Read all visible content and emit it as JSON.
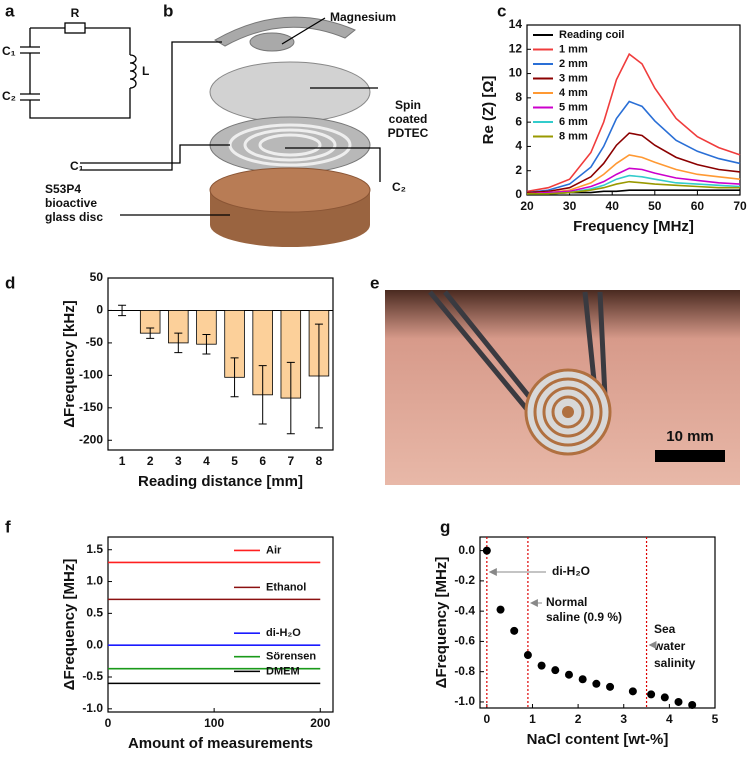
{
  "panel_labels": [
    "a",
    "b",
    "c",
    "d",
    "e",
    "f",
    "g"
  ],
  "circuit": {
    "resistor": "R",
    "capacitor_1": "C₁",
    "capacitor_2": "C₂",
    "inductor": "L"
  },
  "device": {
    "top_layer": "Magnesium",
    "middle_layer": [
      "Spin",
      "coated",
      "PDTEC"
    ],
    "contact_1": "C₁",
    "contact_2": "C₂",
    "substrate": [
      "S53P4",
      "bioactive",
      "glass disc"
    ]
  },
  "photo": {
    "scale_bar": "10 mm"
  },
  "chart_data": [
    {
      "type": "line",
      "ylabel": "Re (Z) [Ω]",
      "xlabel": "Frequency [MHz]",
      "x": [
        20,
        25,
        30,
        35,
        38,
        41,
        44,
        47,
        50,
        55,
        60,
        65,
        70
      ],
      "xlim": [
        20,
        70
      ],
      "xticks": [
        20,
        30,
        40,
        50,
        60,
        70
      ],
      "ylim": [
        0,
        14
      ],
      "yticks": [
        0,
        2,
        4,
        6,
        8,
        10,
        12,
        14
      ],
      "legend": "upper left",
      "series": [
        {
          "name": "Reading coil",
          "color": "#000000",
          "values": [
            0.1,
            0.1,
            0.2,
            0.2,
            0.3,
            0.3,
            0.4,
            0.4,
            0.4,
            0.4,
            0.4,
            0.4,
            0.4
          ]
        },
        {
          "name": "1 mm",
          "color": "#f03c3c",
          "values": [
            0.3,
            0.6,
            1.3,
            3.5,
            6,
            9.5,
            11.6,
            10.8,
            8.8,
            6.3,
            4.8,
            3.9,
            3.3
          ]
        },
        {
          "name": "2 mm",
          "color": "#2a6fd6",
          "values": [
            0.2,
            0.4,
            0.9,
            2.3,
            4,
            6.3,
            7.7,
            7.3,
            6.1,
            4.5,
            3.6,
            3,
            2.6
          ]
        },
        {
          "name": "3 mm",
          "color": "#8b0000",
          "values": [
            0.2,
            0.3,
            0.6,
            1.5,
            2.6,
            4.1,
            5.1,
            4.9,
            4.1,
            3.1,
            2.5,
            2.1,
            1.9
          ]
        },
        {
          "name": "4 mm",
          "color": "#ff9933",
          "values": [
            0.1,
            0.2,
            0.4,
            1,
            1.7,
            2.6,
            3.3,
            3.1,
            2.7,
            2.1,
            1.7,
            1.5,
            1.3
          ]
        },
        {
          "name": "5 mm",
          "color": "#cc00cc",
          "values": [
            0.1,
            0.2,
            0.3,
            0.7,
            1.1,
            1.7,
            2.2,
            2.1,
            1.8,
            1.4,
            1.2,
            1,
            0.9
          ]
        },
        {
          "name": "6 mm",
          "color": "#33cccc",
          "values": [
            0.1,
            0.1,
            0.2,
            0.5,
            0.8,
            1.3,
            1.6,
            1.5,
            1.3,
            1,
            0.9,
            0.8,
            0.7
          ]
        },
        {
          "name": "8 mm",
          "color": "#999900",
          "values": [
            0.1,
            0.1,
            0.2,
            0.4,
            0.6,
            0.9,
            1.1,
            1,
            0.9,
            0.8,
            0.7,
            0.6,
            0.6
          ]
        }
      ]
    },
    {
      "type": "bar",
      "ylabel": "ΔFrequency [kHz]",
      "xlabel": "Reading distance [mm]",
      "categories": [
        "1",
        "2",
        "3",
        "4",
        "5",
        "6",
        "7",
        "8"
      ],
      "values": [
        0,
        -35,
        -50,
        -52,
        -103,
        -130,
        -135,
        -101
      ],
      "errors": [
        8,
        8,
        15,
        15,
        30,
        45,
        55,
        80
      ],
      "color": "#fcd09a",
      "ylim": [
        -215,
        50
      ],
      "yticks": [
        50,
        0,
        -50,
        -100,
        -150,
        -200
      ]
    },
    {
      "type": "line",
      "ylabel": "ΔFrequency [MHz]",
      "xlabel": "Amount of measurements",
      "x": [
        0,
        200
      ],
      "xlim": [
        0,
        212
      ],
      "xticks": [
        0,
        100,
        200
      ],
      "ylim": [
        -1.05,
        1.7
      ],
      "yticks": [
        1.5,
        {
          "value": 1,
          "label": "1.0"
        },
        0.5,
        {
          "value": 0,
          "label": "0.0"
        },
        -0.5,
        {
          "value": -1,
          "label": "-1.0"
        }
      ],
      "legend": "inline",
      "series": [
        {
          "name": "Air",
          "color": "#ff2020",
          "values": [
            1.3,
            1.3
          ]
        },
        {
          "name": "Ethanol",
          "color": "#8b1010",
          "values": [
            0.72,
            0.72
          ]
        },
        {
          "name": "di-H₂O",
          "color": "#1a1aff",
          "values": [
            0,
            0
          ]
        },
        {
          "name": "Sörensen",
          "color": "#1a9a1a",
          "values": [
            -0.37,
            -0.37
          ]
        },
        {
          "name": "DMEM",
          "color": "#000000",
          "values": [
            -0.6,
            -0.6
          ]
        }
      ]
    },
    {
      "type": "scatter",
      "ylabel": "ΔFrequency [MHz]",
      "xlabel": "NaCl content [wt-%]",
      "x": [
        0,
        0.3,
        0.6,
        0.9,
        1.2,
        1.5,
        1.8,
        2.1,
        2.4,
        2.7,
        3.2,
        3.6,
        3.9,
        4.2,
        4.5
      ],
      "values": [
        0,
        -0.39,
        -0.53,
        -0.69,
        -0.76,
        -0.79,
        -0.82,
        -0.85,
        -0.88,
        -0.9,
        -0.93,
        -0.95,
        -0.97,
        -1,
        -1.02
      ],
      "color": "#000000",
      "xlim": [
        -0.15,
        5
      ],
      "xticks": [
        0,
        1,
        2,
        3,
        4,
        5
      ],
      "ylim": [
        -1.04,
        0.09
      ],
      "yticks": [
        {
          "value": 0,
          "label": "0.0"
        },
        -0.2,
        -0.4,
        -0.6,
        -0.8,
        {
          "value": -1,
          "label": "-1.0"
        }
      ],
      "reference_lines": {
        "x": [
          0,
          0.9,
          3.5
        ],
        "color": "#dd0000"
      },
      "annotations": [
        [
          "di-H₂O"
        ],
        [
          "Normal",
          "saline (0.9 %)"
        ],
        [
          "Sea",
          "water",
          "salinity"
        ]
      ]
    }
  ]
}
